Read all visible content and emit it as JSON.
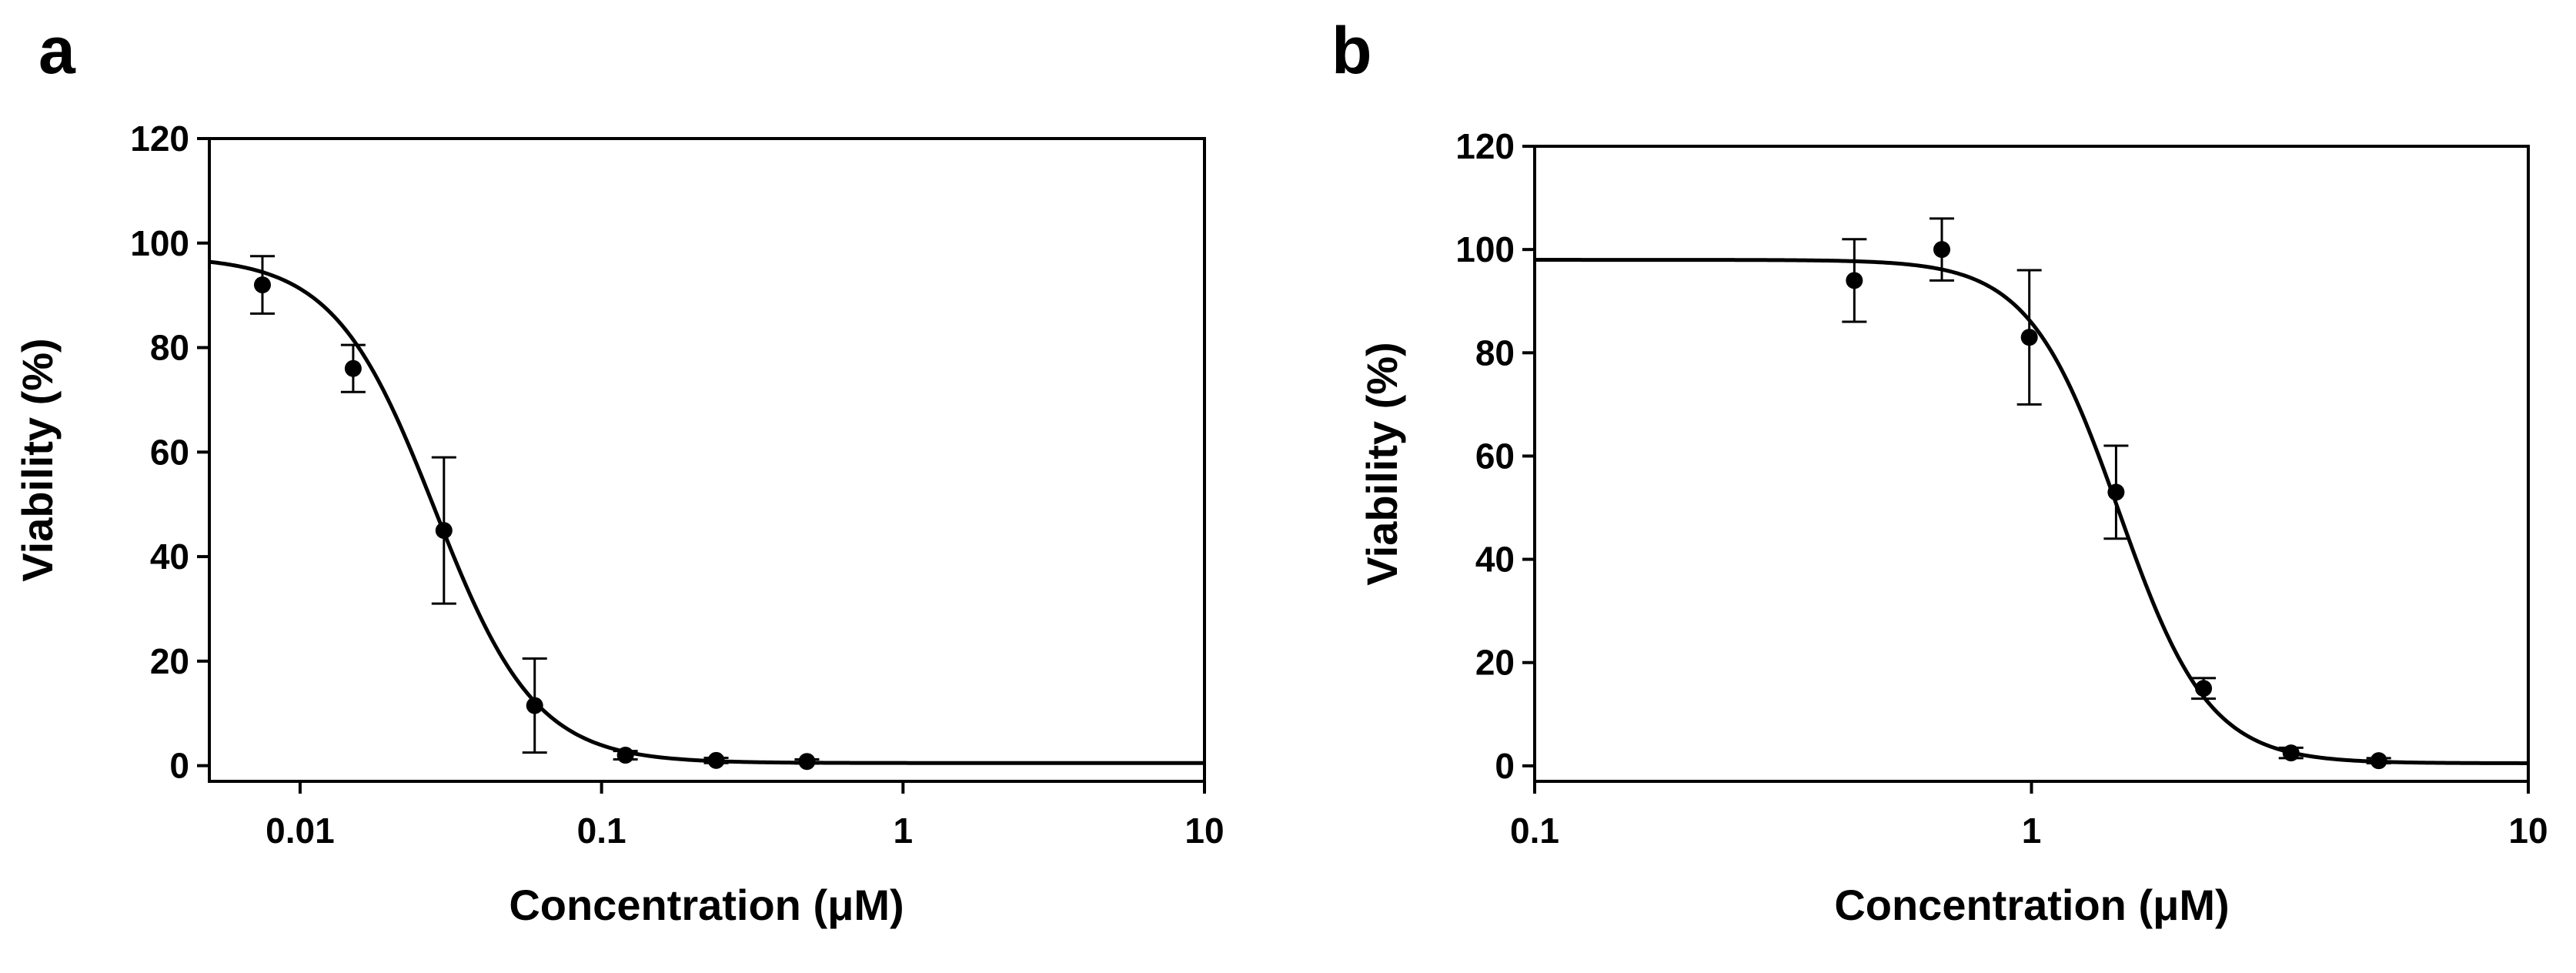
{
  "chart_data": [
    {
      "type": "scatter",
      "panel_label": "a",
      "xlabel": "Concentration (μM)",
      "ylabel": "Viability (%)",
      "xscale": "log",
      "xlim": [
        0.005,
        10
      ],
      "ylim": [
        -3,
        120
      ],
      "xticks": [
        0.01,
        0.1,
        1,
        10
      ],
      "xtick_labels": [
        "0.01",
        "0.1",
        "1",
        "10"
      ],
      "yticks": [
        0,
        20,
        40,
        60,
        80,
        100,
        120
      ],
      "ytick_labels": [
        "0",
        "20",
        "40",
        "60",
        "80",
        "100",
        "120"
      ],
      "grid": false,
      "legend": "none",
      "points": [
        {
          "x": 0.0075,
          "y": 92,
          "err": 5.5
        },
        {
          "x": 0.015,
          "y": 76,
          "err": 4.5
        },
        {
          "x": 0.03,
          "y": 45,
          "err": 14
        },
        {
          "x": 0.06,
          "y": 11.5,
          "err": 9
        },
        {
          "x": 0.12,
          "y": 2,
          "err": 0.8
        },
        {
          "x": 0.24,
          "y": 1,
          "err": 0.5
        },
        {
          "x": 0.48,
          "y": 0.8,
          "err": 0.4
        }
      ],
      "fit": {
        "model": "four-parameter logistic",
        "top": 97.5,
        "bottom": 0.5,
        "ec50": 0.028,
        "hill": 2.6
      }
    },
    {
      "type": "scatter",
      "panel_label": "b",
      "xlabel": "Concentration (μM)",
      "ylabel": "Viability (%)",
      "xscale": "log",
      "xlim": [
        0.1,
        10
      ],
      "ylim": [
        -3,
        120
      ],
      "xticks": [
        0.1,
        1,
        10
      ],
      "xtick_labels": [
        "0.1",
        "1",
        "10"
      ],
      "yticks": [
        0,
        20,
        40,
        60,
        80,
        100,
        120
      ],
      "ytick_labels": [
        "0",
        "20",
        "40",
        "60",
        "80",
        "100",
        "120"
      ],
      "grid": false,
      "legend": "none",
      "points": [
        {
          "x": 0.44,
          "y": 94,
          "err": 8
        },
        {
          "x": 0.66,
          "y": 100,
          "err": 6
        },
        {
          "x": 0.99,
          "y": 83,
          "err": 13
        },
        {
          "x": 1.48,
          "y": 53,
          "err": 9
        },
        {
          "x": 2.22,
          "y": 15,
          "err": 2
        },
        {
          "x": 3.33,
          "y": 2.5,
          "err": 1
        },
        {
          "x": 5.0,
          "y": 1,
          "err": 0.5
        }
      ],
      "fit": {
        "model": "four-parameter logistic",
        "top": 98,
        "bottom": 0.5,
        "ec50": 1.5,
        "hill": 4.8
      }
    }
  ]
}
